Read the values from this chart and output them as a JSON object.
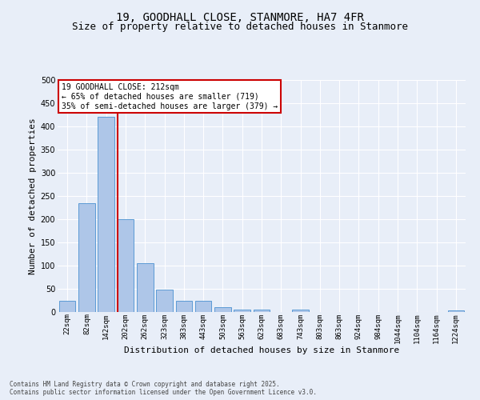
{
  "title_line1": "19, GOODHALL CLOSE, STANMORE, HA7 4FR",
  "title_line2": "Size of property relative to detached houses in Stanmore",
  "xlabel": "Distribution of detached houses by size in Stanmore",
  "ylabel": "Number of detached properties",
  "bin_labels": [
    "22sqm",
    "82sqm",
    "142sqm",
    "202sqm",
    "262sqm",
    "323sqm",
    "383sqm",
    "443sqm",
    "503sqm",
    "563sqm",
    "623sqm",
    "683sqm",
    "743sqm",
    "803sqm",
    "863sqm",
    "924sqm",
    "984sqm",
    "1044sqm",
    "1104sqm",
    "1164sqm",
    "1224sqm"
  ],
  "bar_values": [
    25,
    235,
    420,
    200,
    105,
    48,
    25,
    25,
    10,
    5,
    5,
    0,
    5,
    0,
    0,
    0,
    0,
    0,
    0,
    0,
    3
  ],
  "bar_color": "#aec6e8",
  "bar_edge_color": "#5b9bd5",
  "red_line_index": 3,
  "ylim_min": 0,
  "ylim_max": 500,
  "yticks": [
    0,
    50,
    100,
    150,
    200,
    250,
    300,
    350,
    400,
    450,
    500
  ],
  "annotation_line1": "19 GOODHALL CLOSE: 212sqm",
  "annotation_line2": "← 65% of detached houses are smaller (719)",
  "annotation_line3": "35% of semi-detached houses are larger (379) →",
  "annotation_box_facecolor": "#ffffff",
  "annotation_box_edgecolor": "#cc0000",
  "footnote_line1": "Contains HM Land Registry data © Crown copyright and database right 2025.",
  "footnote_line2": "Contains public sector information licensed under the Open Government Licence v3.0.",
  "bg_color": "#e8eef8",
  "grid_color": "#ffffff",
  "title_fontsize": 10,
  "subtitle_fontsize": 9,
  "tick_fontsize": 6.5,
  "axis_label_fontsize": 8,
  "annot_fontsize": 7,
  "footnote_fontsize": 5.5
}
